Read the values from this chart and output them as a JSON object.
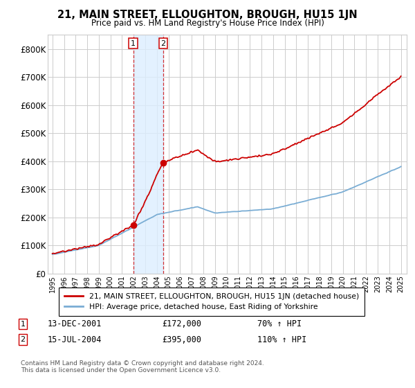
{
  "title": "21, MAIN STREET, ELLOUGHTON, BROUGH, HU15 1JN",
  "subtitle": "Price paid vs. HM Land Registry's House Price Index (HPI)",
  "ylim": [
    0,
    850000
  ],
  "yticks": [
    0,
    100000,
    200000,
    300000,
    400000,
    500000,
    600000,
    700000,
    800000
  ],
  "ytick_labels": [
    "£0",
    "£100K",
    "£200K",
    "£300K",
    "£400K",
    "£500K",
    "£600K",
    "£700K",
    "£800K"
  ],
  "background_color": "#ffffff",
  "grid_color": "#cccccc",
  "sale1_date": 2001.96,
  "sale1_price": 172000,
  "sale1_label": "1",
  "sale1_text": "13-DEC-2001",
  "sale1_amount": "£172,000",
  "sale1_hpi": "70% ↑ HPI",
  "sale2_date": 2004.54,
  "sale2_price": 395000,
  "sale2_label": "2",
  "sale2_text": "15-JUL-2004",
  "sale2_amount": "£395,000",
  "sale2_hpi": "110% ↑ HPI",
  "legend_line1": "21, MAIN STREET, ELLOUGHTON, BROUGH, HU15 1JN (detached house)",
  "legend_line2": "HPI: Average price, detached house, East Riding of Yorkshire",
  "footer": "Contains HM Land Registry data © Crown copyright and database right 2024.\nThis data is licensed under the Open Government Licence v3.0.",
  "red_color": "#cc0000",
  "blue_color": "#7aadd4",
  "shade_color": "#ddeeff"
}
